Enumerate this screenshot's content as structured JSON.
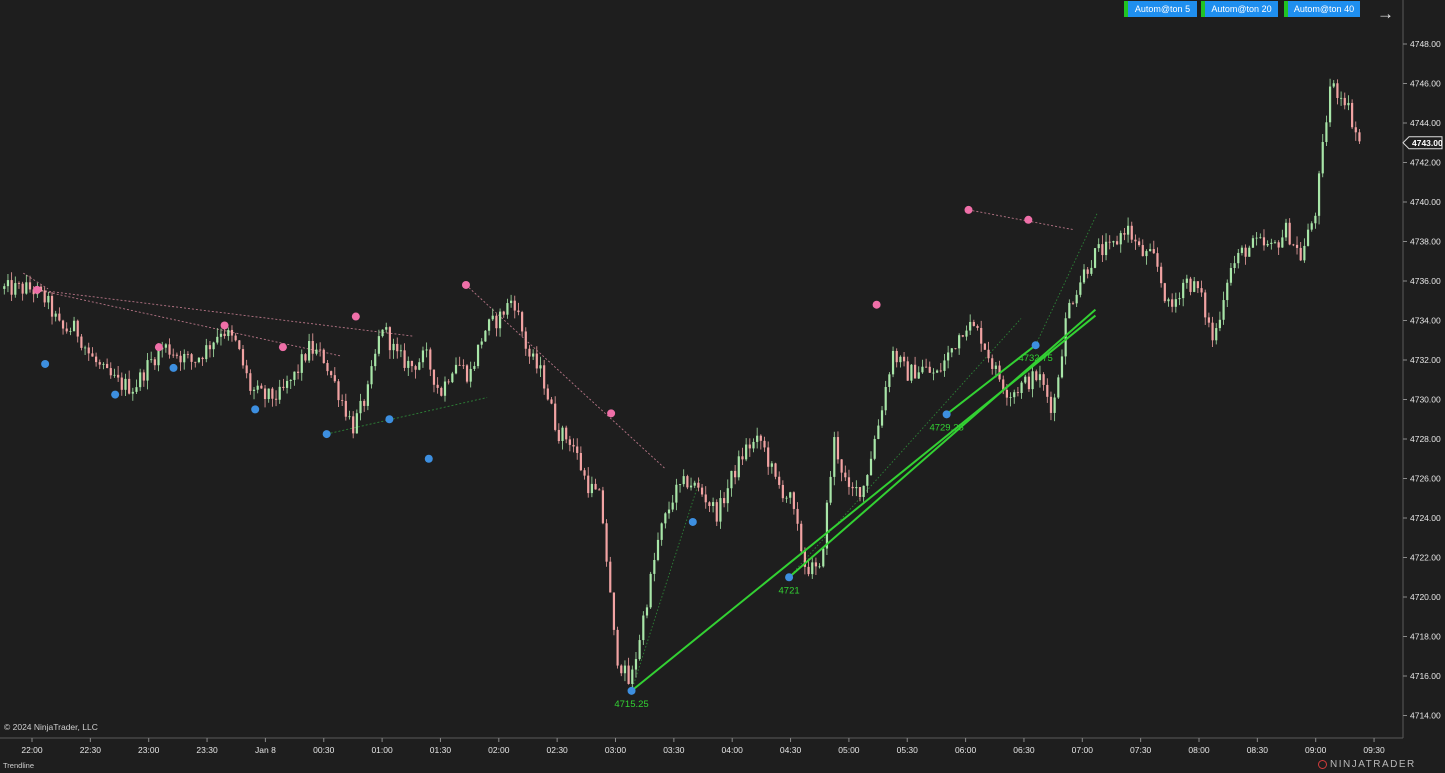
{
  "toolbar": {
    "buttons": [
      {
        "label": "Autom@ton  5"
      },
      {
        "label": "Autom@ton  20"
      },
      {
        "label": "Autom@ton  40"
      }
    ],
    "arrow_icon": "arrow-right-icon"
  },
  "footer": {
    "copyright": "© 2024 NinjaTrader, LLC",
    "status": "Trendline",
    "logo": "NINJATRADER"
  },
  "colors": {
    "background": "#1e1e1e",
    "up_candle": "#a8e6a8",
    "down_candle": "#f2a3a3",
    "swing_high": "#ef6fa8",
    "swing_low": "#3d8fe0",
    "trendline": "#33d133",
    "button": "#1f8fef"
  },
  "chart_data": {
    "type": "candlestick",
    "x_ticks": [
      "22:00",
      "22:30",
      "23:00",
      "23:30",
      "Jan 8",
      "00:30",
      "01:00",
      "01:30",
      "02:00",
      "02:30",
      "03:00",
      "03:30",
      "04:00",
      "04:30",
      "05:00",
      "05:30",
      "06:00",
      "06:30",
      "07:00",
      "07:30",
      "08:00",
      "08:30",
      "09:00",
      "09:30"
    ],
    "y_ticks": [
      "4714.00",
      "4716.00",
      "4718.00",
      "4720.00",
      "4722.00",
      "4724.00",
      "4726.00",
      "4728.00",
      "4730.00",
      "4732.00",
      "4734.00",
      "4736.00",
      "4738.00",
      "4740.00",
      "4742.00",
      "4744.00",
      "4746.00",
      "4748.00"
    ],
    "ylim": [
      4713.3,
      4749.2
    ],
    "last_price": "4743.00",
    "path": [
      [
        0,
        4735.6
      ],
      [
        1,
        4735
      ],
      [
        2,
        4733.5
      ],
      [
        3,
        4733.6
      ],
      [
        4,
        4732.2
      ],
      [
        5,
        4731.3
      ],
      [
        6,
        4730.8
      ],
      [
        7,
        4730.6
      ],
      [
        8,
        4731.8
      ],
      [
        9,
        4732.7
      ],
      [
        10,
        4732.3
      ],
      [
        11,
        4731.9
      ],
      [
        12,
        4732.6
      ],
      [
        13,
        4733.6
      ],
      [
        14,
        4732.8
      ],
      [
        15,
        4730.5
      ],
      [
        16,
        4730.1
      ],
      [
        17,
        4730.2
      ],
      [
        18,
        4731.2
      ],
      [
        19,
        4732.6
      ],
      [
        20,
        4732.1
      ],
      [
        21,
        4730.4
      ],
      [
        22,
        4728.6
      ],
      [
        23,
        4730.3
      ],
      [
        24,
        4733.8
      ],
      [
        25,
        4732.2
      ],
      [
        26,
        4731.7
      ],
      [
        27,
        4732.2
      ],
      [
        28,
        4730.3
      ],
      [
        29,
        4732
      ],
      [
        30,
        4731.2
      ],
      [
        31,
        4733.5
      ],
      [
        32,
        4734.1
      ],
      [
        33,
        4735.2
      ],
      [
        34,
        4732.3
      ],
      [
        35,
        4731.2
      ],
      [
        36,
        4728.4
      ],
      [
        37,
        4727.9
      ],
      [
        38,
        4725.8
      ],
      [
        39,
        4724.9
      ],
      [
        40,
        4717.2
      ],
      [
        41,
        4715.5
      ],
      [
        42,
        4719.3
      ],
      [
        43,
        4723.1
      ],
      [
        44,
        4725.2
      ],
      [
        45,
        4725.9
      ],
      [
        46,
        4725.2
      ],
      [
        47,
        4724.2
      ],
      [
        48,
        4726.1
      ],
      [
        49,
        4727.6
      ],
      [
        50,
        4727.9
      ],
      [
        51,
        4725.8
      ],
      [
        52,
        4724.9
      ],
      [
        53,
        4721.6
      ],
      [
        54,
        4721.2
      ],
      [
        55,
        4727.9
      ],
      [
        56,
        4725.2
      ],
      [
        57,
        4725.6
      ],
      [
        58,
        4728.7
      ],
      [
        59,
        4732.4
      ],
      [
        60,
        4731.3
      ],
      [
        61,
        4731.6
      ],
      [
        62,
        4731.2
      ],
      [
        63,
        4732.5
      ],
      [
        64,
        4733.9
      ],
      [
        65,
        4733.3
      ],
      [
        66,
        4731.5
      ],
      [
        67,
        4730.3
      ],
      [
        68,
        4730.8
      ],
      [
        69,
        4731.2
      ],
      [
        70,
        4729.5
      ],
      [
        71,
        4734.6
      ],
      [
        72,
        4736.3
      ],
      [
        73,
        4737.5
      ],
      [
        74,
        4737.6
      ],
      [
        75,
        4738.8
      ],
      [
        76,
        4737.4
      ],
      [
        77,
        4737.1
      ],
      [
        78,
        4734.4
      ],
      [
        79,
        4736.1
      ],
      [
        80,
        4735.5
      ],
      [
        81,
        4732.9
      ],
      [
        82,
        4736.4
      ],
      [
        83,
        4737.5
      ],
      [
        84,
        4737.9
      ],
      [
        85,
        4737.6
      ],
      [
        86,
        4738.6
      ],
      [
        87,
        4737.2
      ],
      [
        88,
        4739.6
      ],
      [
        89,
        4745.9
      ],
      [
        90,
        4745.3
      ],
      [
        91,
        4743
      ]
    ],
    "swing_highs": [
      {
        "x": 0.35,
        "y": 4735.55
      },
      {
        "x": 8.7,
        "y": 4732.65
      },
      {
        "x": 13.2,
        "y": 4733.75
      },
      {
        "x": 17.2,
        "y": 4732.65
      },
      {
        "x": 22.2,
        "y": 4734.2
      },
      {
        "x": 29.75,
        "y": 4735.8
      },
      {
        "x": 39.7,
        "y": 4729.3
      },
      {
        "x": 57.9,
        "y": 4734.8
      },
      {
        "x": 64.2,
        "y": 4739.6
      },
      {
        "x": 68.3,
        "y": 4739.1
      }
    ],
    "swing_lows": [
      {
        "x": 0.9,
        "y": 4731.8
      },
      {
        "x": 5.7,
        "y": 4730.25
      },
      {
        "x": 9.7,
        "y": 4731.6
      },
      {
        "x": 15.3,
        "y": 4729.5
      },
      {
        "x": 20.2,
        "y": 4728.25
      },
      {
        "x": 24.5,
        "y": 4729
      },
      {
        "x": 27.2,
        "y": 4727
      },
      {
        "x": 41.1,
        "y": 4715.25
      },
      {
        "x": 45.3,
        "y": 4723.8
      },
      {
        "x": 51.9,
        "y": 4721
      },
      {
        "x": 62.7,
        "y": 4729.25
      },
      {
        "x": 68.8,
        "y": 4732.75
      }
    ],
    "trendlines": [
      {
        "from": [
          41.1,
          4715.25
        ],
        "to": [
          72.9,
          4734.25
        ],
        "style": "solid"
      },
      {
        "from": [
          51.9,
          4721
        ],
        "to": [
          72.9,
          4734.55
        ],
        "style": "solid"
      },
      {
        "from": [
          62.7,
          4729.25
        ],
        "to": [
          68.8,
          4732.75
        ],
        "style": "solid"
      }
    ],
    "minor_lines": [
      {
        "from": [
          -0.6,
          4736.4
        ],
        "to": [
          1.1,
          4735.6
        ],
        "color": "#c77f92",
        "dash": "2,2"
      },
      {
        "from": [
          0.35,
          4735.55
        ],
        "to": [
          26.2,
          4733.2
        ],
        "color": "#c77f92",
        "dash": "2,2"
      },
      {
        "from": [
          0.35,
          4735.55
        ],
        "to": [
          21.2,
          4732.2
        ],
        "color": "#c77f92",
        "dash": "2,2"
      },
      {
        "from": [
          29.75,
          4735.8
        ],
        "to": [
          43.4,
          4726.5
        ],
        "color": "#c77f92",
        "dash": "2,2"
      },
      {
        "from": [
          64.2,
          4739.6
        ],
        "to": [
          71.4,
          4738.6
        ],
        "color": "#c77f92",
        "dash": "2,2"
      },
      {
        "from": [
          20.2,
          4728.25
        ],
        "to": [
          31.2,
          4730.1
        ],
        "color": "#2f8f3a",
        "dash": "2,2"
      },
      {
        "from": [
          41.1,
          4715.25
        ],
        "to": [
          45.8,
          4726
        ],
        "color": "#2f8f3a",
        "dash": "1.5,2"
      },
      {
        "from": [
          51.9,
          4721
        ],
        "to": [
          67.8,
          4734.1
        ],
        "color": "#2f8f3a",
        "dash": "1.5,2"
      },
      {
        "from": [
          68.8,
          4732.75
        ],
        "to": [
          73,
          4739.4
        ],
        "color": "#2f8f3a",
        "dash": "1.5,2"
      }
    ],
    "level_labels": [
      {
        "text": "4715.25",
        "x": 41.1,
        "y": 4715.25
      },
      {
        "text": "4721",
        "x": 51.9,
        "y": 4721
      },
      {
        "text": "4729.25",
        "x": 62.7,
        "y": 4729.25
      },
      {
        "text": "4732.75",
        "x": 68.8,
        "y": 4732.75
      }
    ]
  }
}
